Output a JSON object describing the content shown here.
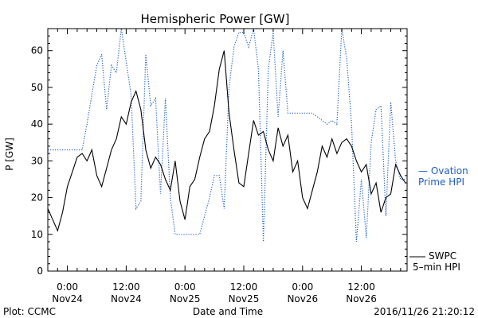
{
  "chart_data": {
    "type": "line",
    "title": "Hemispheric Power [GW]",
    "xlabel": "Date and Time",
    "ylabel": "P [GW]",
    "ylim": [
      0,
      66
    ],
    "yticks": [
      0,
      10,
      20,
      30,
      40,
      50,
      60
    ],
    "xlim": [
      "2016-11-23T20:00",
      "2016-11-26T21:20"
    ],
    "xticks": [
      {
        "t": "2016-11-24T00:00",
        "time": "0:00",
        "date": "Nov24"
      },
      {
        "t": "2016-11-24T12:00",
        "time": "12:00",
        "date": "Nov24"
      },
      {
        "t": "2016-11-25T00:00",
        "time": "0:00",
        "date": "Nov25"
      },
      {
        "t": "2016-11-25T12:00",
        "time": "12:00",
        "date": "Nov25"
      },
      {
        "t": "2016-11-26T00:00",
        "time": "0:00",
        "date": "Nov26"
      },
      {
        "t": "2016-11-26T12:00",
        "time": "12:00",
        "date": "Nov26"
      }
    ],
    "grid": false,
    "legend": "right",
    "series": [
      {
        "name": "SWPC 5-min HPI",
        "color": "#000000",
        "style": "solid",
        "x": [
          "2016-11-23T20:00",
          "2016-11-23T21:00",
          "2016-11-23T22:00",
          "2016-11-23T23:00",
          "2016-11-24T00:00",
          "2016-11-24T01:00",
          "2016-11-24T02:00",
          "2016-11-24T03:00",
          "2016-11-24T04:00",
          "2016-11-24T05:00",
          "2016-11-24T06:00",
          "2016-11-24T07:00",
          "2016-11-24T08:00",
          "2016-11-24T09:00",
          "2016-11-24T10:00",
          "2016-11-24T11:00",
          "2016-11-24T12:00",
          "2016-11-24T13:00",
          "2016-11-24T14:00",
          "2016-11-24T15:00",
          "2016-11-24T16:00",
          "2016-11-24T17:00",
          "2016-11-24T18:00",
          "2016-11-24T19:00",
          "2016-11-24T20:00",
          "2016-11-24T21:00",
          "2016-11-24T22:00",
          "2016-11-24T23:00",
          "2016-11-25T00:00",
          "2016-11-25T01:00",
          "2016-11-25T02:00",
          "2016-11-25T03:00",
          "2016-11-25T04:00",
          "2016-11-25T05:00",
          "2016-11-25T06:00",
          "2016-11-25T07:00",
          "2016-11-25T08:00",
          "2016-11-25T09:00",
          "2016-11-25T10:00",
          "2016-11-25T11:00",
          "2016-11-25T12:00",
          "2016-11-25T13:00",
          "2016-11-25T14:00",
          "2016-11-25T15:00",
          "2016-11-25T16:00",
          "2016-11-25T17:00",
          "2016-11-25T18:00",
          "2016-11-25T19:00",
          "2016-11-25T20:00",
          "2016-11-25T21:00",
          "2016-11-25T22:00",
          "2016-11-25T23:00",
          "2016-11-26T00:00",
          "2016-11-26T01:00",
          "2016-11-26T02:00",
          "2016-11-26T03:00",
          "2016-11-26T04:00",
          "2016-11-26T05:00",
          "2016-11-26T06:00",
          "2016-11-26T07:00",
          "2016-11-26T08:00",
          "2016-11-26T09:00",
          "2016-11-26T10:00",
          "2016-11-26T11:00",
          "2016-11-26T12:00",
          "2016-11-26T13:00",
          "2016-11-26T14:00",
          "2016-11-26T15:00",
          "2016-11-26T16:00",
          "2016-11-26T17:00",
          "2016-11-26T18:00",
          "2016-11-26T19:00",
          "2016-11-26T20:00",
          "2016-11-26T21:00"
        ],
        "values": [
          17,
          14,
          11,
          16,
          23,
          27,
          31,
          32,
          30,
          33,
          26,
          23,
          28,
          33,
          36,
          42,
          40,
          46,
          49,
          44,
          33,
          28,
          31,
          29,
          25,
          22,
          30,
          19,
          14,
          23,
          25,
          31,
          36,
          38,
          45,
          55,
          60,
          43,
          33,
          24,
          23,
          32,
          41,
          37,
          38,
          33,
          30,
          39,
          34,
          37,
          27,
          30,
          20,
          17,
          22,
          27,
          34,
          31,
          36,
          32,
          35,
          36,
          34,
          30,
          27,
          29,
          21,
          24,
          16,
          20,
          21,
          29,
          26,
          24
        ]
      },
      {
        "name": "Ovation Prime HPI",
        "color": "#1f5fbf",
        "style": "dotted",
        "x": [
          "2016-11-23T20:00",
          "2016-11-23T21:00",
          "2016-11-23T22:00",
          "2016-11-23T23:00",
          "2016-11-24T00:00",
          "2016-11-24T01:00",
          "2016-11-24T02:00",
          "2016-11-24T03:00",
          "2016-11-24T04:00",
          "2016-11-24T05:00",
          "2016-11-24T06:00",
          "2016-11-24T07:00",
          "2016-11-24T08:00",
          "2016-11-24T09:00",
          "2016-11-24T10:00",
          "2016-11-24T11:00",
          "2016-11-24T12:00",
          "2016-11-24T13:00",
          "2016-11-24T14:00",
          "2016-11-24T15:00",
          "2016-11-24T16:00",
          "2016-11-24T17:00",
          "2016-11-24T18:00",
          "2016-11-24T19:00",
          "2016-11-24T20:00",
          "2016-11-24T21:00",
          "2016-11-24T22:00",
          "2016-11-24T23:00",
          "2016-11-25T00:00",
          "2016-11-25T01:00",
          "2016-11-25T02:00",
          "2016-11-25T03:00",
          "2016-11-25T04:00",
          "2016-11-25T05:00",
          "2016-11-25T06:00",
          "2016-11-25T07:00",
          "2016-11-25T08:00",
          "2016-11-25T09:00",
          "2016-11-25T10:00",
          "2016-11-25T11:00",
          "2016-11-25T12:00",
          "2016-11-25T13:00",
          "2016-11-25T14:00",
          "2016-11-25T15:00",
          "2016-11-25T16:00",
          "2016-11-25T17:00",
          "2016-11-25T18:00",
          "2016-11-25T19:00",
          "2016-11-25T20:00",
          "2016-11-25T21:00",
          "2016-11-25T22:00",
          "2016-11-25T23:00",
          "2016-11-26T00:00",
          "2016-11-26T01:00",
          "2016-11-26T02:00",
          "2016-11-26T03:00",
          "2016-11-26T04:00",
          "2016-11-26T05:00",
          "2016-11-26T06:00",
          "2016-11-26T07:00",
          "2016-11-26T08:00",
          "2016-11-26T09:00",
          "2016-11-26T10:00",
          "2016-11-26T11:00",
          "2016-11-26T12:00",
          "2016-11-26T13:00",
          "2016-11-26T14:00",
          "2016-11-26T15:00",
          "2016-11-26T16:00",
          "2016-11-26T17:00",
          "2016-11-26T18:00",
          "2016-11-26T19:00",
          "2016-11-26T20:00",
          "2016-11-26T21:00"
        ],
        "values": [
          33,
          33,
          33,
          33,
          33,
          33,
          33,
          33,
          40,
          48,
          56,
          59,
          44,
          56,
          54,
          66,
          57,
          48,
          17,
          19,
          59,
          45,
          47,
          21,
          47,
          20,
          10,
          10,
          10,
          10,
          10,
          10,
          15,
          20,
          26,
          26,
          17,
          50,
          61,
          65,
          65,
          61,
          66,
          55,
          8,
          55,
          65,
          42,
          60,
          43,
          43,
          43,
          43,
          43,
          43,
          42,
          41,
          40,
          41,
          40,
          66,
          58,
          40,
          8,
          25,
          9,
          35,
          44,
          45,
          15,
          46,
          30,
          25,
          25
        ]
      }
    ]
  },
  "legend": {
    "ovation_line1": "— Ovation",
    "ovation_line2": "Prime HPI",
    "swpc_line1": "SWPC",
    "swpc_line2": "5–min HPI"
  },
  "footer": {
    "credit": "Plot: CCMC",
    "timestamp": "2016/11/26 21:20:12"
  }
}
